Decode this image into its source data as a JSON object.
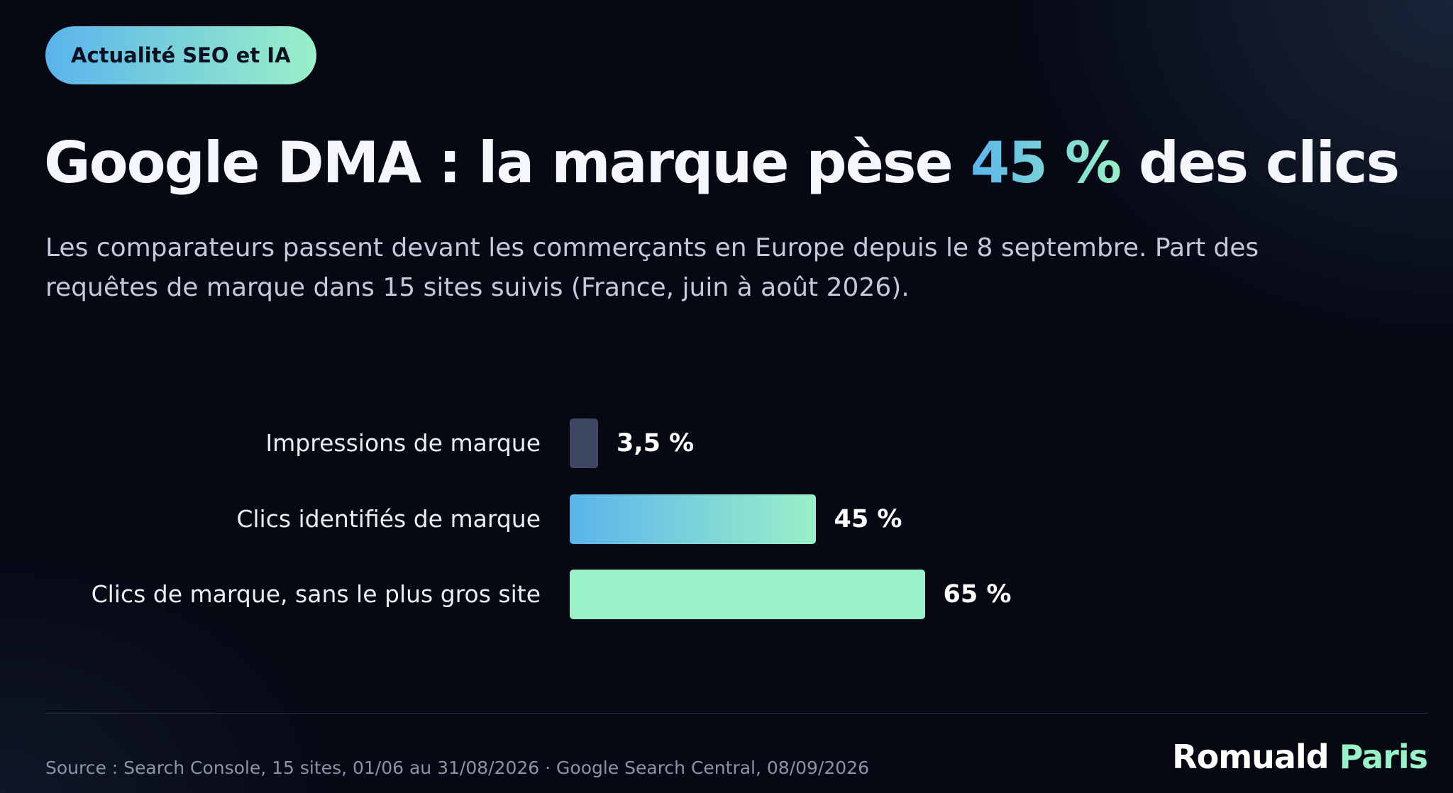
{
  "badge": {
    "label": "Actualité SEO et IA"
  },
  "header": {
    "title_before": "Google DMA : la marque pèse ",
    "title_highlight": "45 %",
    "title_after": " des clics",
    "subtitle": "Les comparateurs passent devant les commerçants en Europe depuis le 8 septembre. Part des requêtes de marque dans 15 sites suivis (France, juin à août 2026)."
  },
  "chart_data": {
    "type": "bar",
    "orientation": "horizontal",
    "title": "Google DMA : la marque pèse 45 % des clics",
    "subtitle": "Les comparateurs passent devant les commerçants en Europe depuis le 8 septembre. Part des requêtes de marque dans 15 sites suivis (France, juin à août 2026).",
    "xlabel": "",
    "ylabel": "",
    "unit": "%",
    "xlim": [
      0,
      100
    ],
    "grid": false,
    "legend": "none",
    "categories": [
      "Impressions de marque",
      "Clics identifiés de marque",
      "Clics de marque, sans le plus gros site"
    ],
    "values": [
      3.5,
      45,
      65
    ],
    "value_labels": [
      "3,5 %",
      "45 %",
      "65 %"
    ],
    "bar_styles": [
      "slate",
      "blue-to-mint",
      "mint"
    ]
  },
  "colors": {
    "accent_blue": "#5ab4ec",
    "accent_mint": "#9af0c7",
    "bar_slate": "#3e4862",
    "background": "#060914"
  },
  "footer": {
    "source": "Source : Search Console, 15 sites, 01/06 au 31/08/2026 · Google Search Central, 08/09/2026",
    "brand_first": "Romuald",
    "brand_second": "Paris"
  }
}
